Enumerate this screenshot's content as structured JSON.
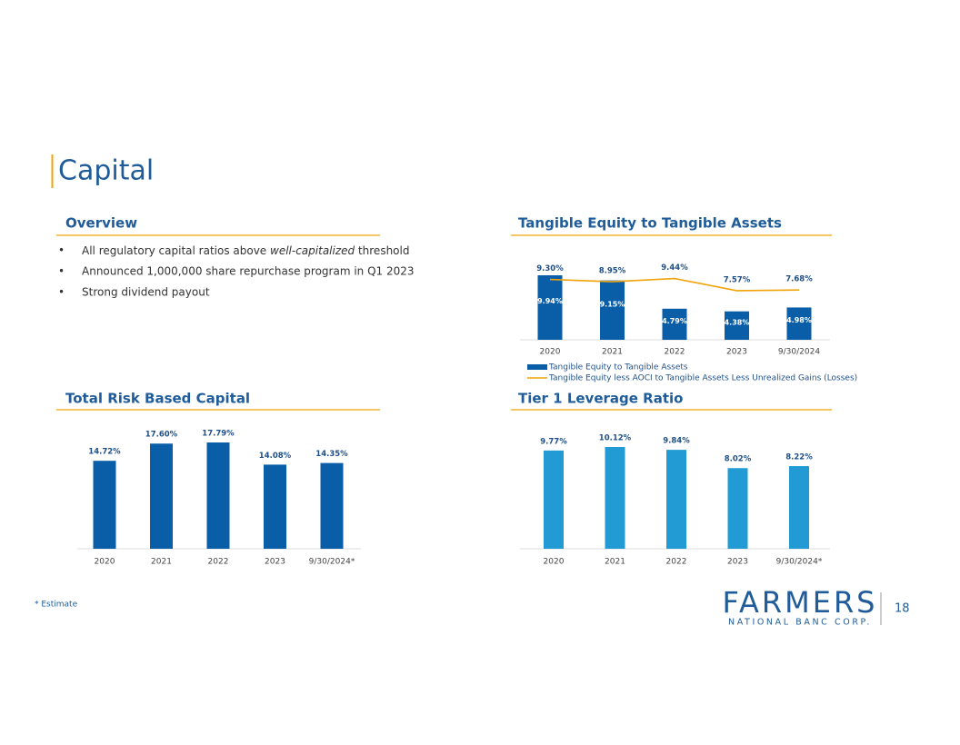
{
  "slide_title": "Capital",
  "overview": {
    "heading": "Overview",
    "bullets": [
      [
        "All regulatory capital ratios above ",
        "well-capitalized",
        " threshold"
      ],
      [
        "Announced 1,000,000 share repurchase program in Q1 2023"
      ],
      [
        "Strong dividend payout"
      ]
    ]
  },
  "chart_data": [
    {
      "type": "combo",
      "title": "Tangible Equity to Tangible Assets",
      "categories": [
        "2020",
        "2021",
        "2022",
        "2023",
        "9/30/2024"
      ],
      "series": [
        {
          "name": "Tangible Equity to Tangible Assets",
          "type": "bar",
          "color": "#0a5ea8",
          "values": [
            9.94,
            9.15,
            4.79,
            4.38,
            4.98
          ],
          "value_labels": [
            "9.94%",
            "9.15%",
            "4.79%",
            "4.38%",
            "4.98%"
          ]
        },
        {
          "name": "Tangible Equity less AOCI to Tangible Assets Less Unrealized Gains (Losses)",
          "type": "line",
          "color": "#f0a30a",
          "values": [
            9.3,
            8.95,
            9.44,
            7.57,
            7.68
          ],
          "value_labels": [
            "9.30%",
            "8.95%",
            "9.44%",
            "7.57%",
            "7.68%"
          ]
        }
      ]
    },
    {
      "type": "bar",
      "title": "Total Risk Based Capital",
      "categories": [
        "2020",
        "2021",
        "2022",
        "2023",
        "9/30/2024*"
      ],
      "color": "#0a5ea8",
      "values": [
        14.72,
        17.6,
        17.79,
        14.08,
        14.35
      ],
      "value_labels": [
        "14.72%",
        "17.60%",
        "17.79%",
        "14.08%",
        "14.35%"
      ]
    },
    {
      "type": "bar",
      "title": "Tier 1 Leverage Ratio",
      "categories": [
        "2020",
        "2021",
        "2022",
        "2023",
        "9/30/2024*"
      ],
      "color": "#229bd5",
      "values": [
        9.77,
        10.12,
        9.84,
        8.02,
        8.22
      ],
      "value_labels": [
        "9.77%",
        "10.12%",
        "9.84%",
        "8.02%",
        "8.22%"
      ]
    }
  ],
  "footnote": "* Estimate",
  "logo": {
    "name": "FARMERS",
    "subtitle": "NATIONAL BANC CORP."
  },
  "page_number": "18"
}
